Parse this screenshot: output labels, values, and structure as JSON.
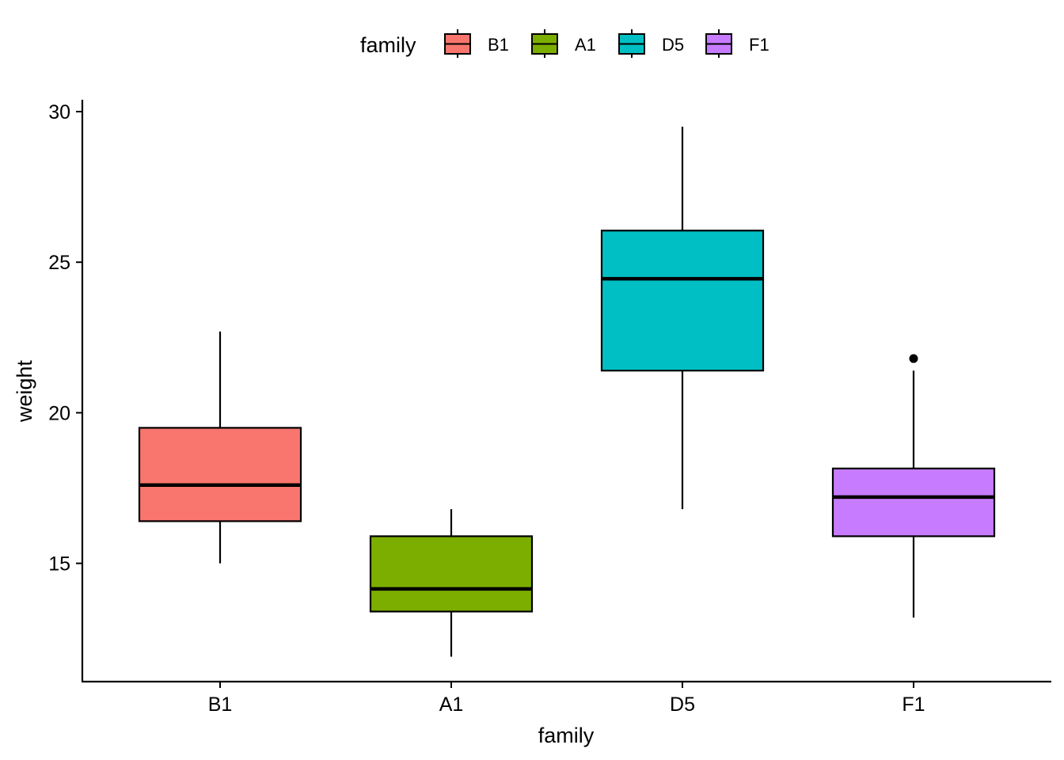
{
  "chart_data": {
    "type": "boxplot",
    "xlabel": "family",
    "ylabel": "weight",
    "ylim": [
      11.6,
      30.4
    ],
    "yticks": [
      15,
      20,
      25,
      30
    ],
    "categories": [
      "B1",
      "A1",
      "D5",
      "F1"
    ],
    "legend": {
      "title": "family",
      "position": "top",
      "entries": [
        "B1",
        "A1",
        "D5",
        "F1"
      ]
    },
    "colors": {
      "B1": "#F8766D",
      "A1": "#7CAE00",
      "D5": "#00BFC4",
      "F1": "#C77CFF"
    },
    "boxes": [
      {
        "category": "B1",
        "whisker_low": 15.0,
        "q1": 16.4,
        "median": 17.6,
        "q3": 19.5,
        "whisker_high": 22.7,
        "outliers": []
      },
      {
        "category": "A1",
        "whisker_low": 11.9,
        "q1": 13.4,
        "median": 14.15,
        "q3": 15.9,
        "whisker_high": 16.8,
        "outliers": []
      },
      {
        "category": "D5",
        "whisker_low": 16.8,
        "q1": 21.4,
        "median": 24.45,
        "q3": 26.05,
        "whisker_high": 29.5,
        "outliers": []
      },
      {
        "category": "F1",
        "whisker_low": 13.2,
        "q1": 15.9,
        "median": 17.2,
        "q3": 18.15,
        "whisker_high": 21.4,
        "outliers": [
          21.8
        ]
      }
    ],
    "grid": false
  }
}
